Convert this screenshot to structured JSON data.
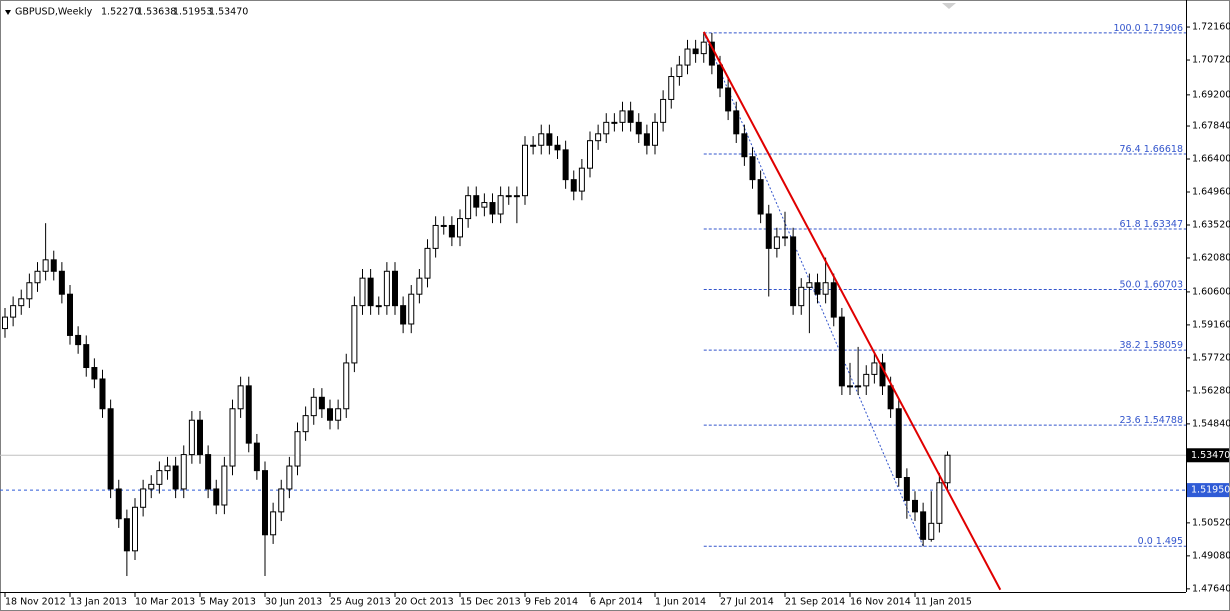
{
  "chart_data": {
    "type": "candlestick",
    "header": {
      "symbol": "GBPUSD,Weekly",
      "ohlc": [
        "1.52270",
        "1.53638",
        "1.51953",
        "1.53470"
      ]
    },
    "categories": [
      "18 Nov 2012",
      null,
      null,
      null,
      null,
      null,
      null,
      null,
      "13 Jan 2013",
      null,
      null,
      null,
      null,
      null,
      null,
      null,
      "10 Mar 2013",
      null,
      null,
      null,
      null,
      null,
      null,
      null,
      "5 May 2013",
      null,
      null,
      null,
      null,
      null,
      null,
      null,
      "30 Jun 2013",
      null,
      null,
      null,
      null,
      null,
      null,
      null,
      "25 Aug 2013",
      null,
      null,
      null,
      null,
      null,
      null,
      null,
      "20 Oct 2013",
      null,
      null,
      null,
      null,
      null,
      null,
      null,
      "15 Dec 2013",
      null,
      null,
      null,
      null,
      null,
      null,
      null,
      "9 Feb 2014",
      null,
      null,
      null,
      null,
      null,
      null,
      null,
      "6 Apr 2014",
      null,
      null,
      null,
      null,
      null,
      null,
      null,
      "1 Jun 2014",
      null,
      null,
      null,
      null,
      null,
      null,
      null,
      "27 Jul 2014",
      null,
      null,
      null,
      null,
      null,
      null,
      null,
      "21 Sep 2014",
      null,
      null,
      null,
      null,
      null,
      null,
      null,
      "16 Nov 2014",
      null,
      null,
      null,
      null,
      null,
      null,
      null,
      "11 Jan 2015",
      null,
      null,
      null,
      null
    ],
    "open": [
      1.59,
      1.595,
      1.6,
      1.603,
      1.61,
      1.615,
      1.62,
      1.615,
      1.605,
      1.587,
      1.583,
      1.573,
      1.568,
      1.555,
      1.52,
      1.507,
      1.493,
      1.512,
      1.52,
      1.522,
      1.528,
      1.53,
      1.52,
      1.535,
      1.55,
      1.535,
      1.52,
      1.513,
      1.53,
      1.555,
      1.565,
      1.54,
      1.528,
      1.5,
      1.51,
      1.52,
      1.53,
      1.545,
      1.552,
      1.56,
      1.555,
      1.55,
      1.555,
      1.575,
      1.6,
      1.612,
      1.6,
      1.6,
      1.615,
      1.6,
      1.592,
      1.605,
      1.612,
      1.625,
      1.635,
      1.635,
      1.63,
      1.638,
      1.648,
      1.643,
      1.645,
      1.64,
      1.648,
      1.648,
      1.648,
      1.67,
      1.67,
      1.675,
      1.67,
      1.668,
      1.655,
      1.65,
      1.66,
      1.672,
      1.675,
      1.68,
      1.68,
      1.685,
      1.68,
      1.675,
      1.67,
      1.68,
      1.69,
      1.7,
      1.705,
      1.712,
      1.71,
      1.715,
      1.705,
      1.695,
      1.685,
      1.675,
      1.665,
      1.655,
      1.64,
      1.625,
      1.63,
      1.63,
      1.6,
      1.608,
      1.61,
      1.605,
      1.61,
      1.595,
      1.565,
      1.565,
      1.565,
      1.57,
      1.575,
      1.565,
      1.555,
      1.525,
      1.515,
      1.51,
      1.498,
      1.505,
      1.5227
    ],
    "high": [
      1.599,
      1.604,
      1.607,
      1.614,
      1.619,
      1.636,
      1.624,
      1.619,
      1.609,
      1.591,
      1.587,
      1.577,
      1.572,
      1.559,
      1.524,
      1.511,
      1.516,
      1.524,
      1.526,
      1.532,
      1.534,
      1.534,
      1.539,
      1.554,
      1.554,
      1.539,
      1.524,
      1.534,
      1.559,
      1.569,
      1.569,
      1.544,
      1.532,
      1.514,
      1.524,
      1.534,
      1.549,
      1.556,
      1.564,
      1.564,
      1.559,
      1.559,
      1.579,
      1.604,
      1.616,
      1.616,
      1.604,
      1.619,
      1.619,
      1.604,
      1.609,
      1.616,
      1.629,
      1.639,
      1.639,
      1.639,
      1.642,
      1.652,
      1.652,
      1.649,
      1.649,
      1.652,
      1.652,
      1.652,
      1.674,
      1.674,
      1.679,
      1.679,
      1.674,
      1.672,
      1.659,
      1.664,
      1.676,
      1.679,
      1.684,
      1.684,
      1.689,
      1.689,
      1.684,
      1.679,
      1.684,
      1.694,
      1.704,
      1.709,
      1.716,
      1.716,
      1.719,
      1.719,
      1.709,
      1.699,
      1.689,
      1.679,
      1.669,
      1.659,
      1.644,
      1.634,
      1.641,
      1.634,
      1.612,
      1.614,
      1.614,
      1.621,
      1.614,
      1.599,
      1.575,
      1.582,
      1.574,
      1.579,
      1.579,
      1.569,
      1.559,
      1.529,
      1.519,
      1.514,
      1.519,
      1.527,
      1.53638
    ],
    "low": [
      1.586,
      1.591,
      1.596,
      1.599,
      1.606,
      1.611,
      1.611,
      1.601,
      1.583,
      1.579,
      1.569,
      1.564,
      1.551,
      1.516,
      1.503,
      1.482,
      1.489,
      1.508,
      1.516,
      1.518,
      1.524,
      1.516,
      1.516,
      1.531,
      1.531,
      1.516,
      1.509,
      1.509,
      1.526,
      1.551,
      1.536,
      1.524,
      1.482,
      1.496,
      1.506,
      1.516,
      1.526,
      1.541,
      1.548,
      1.551,
      1.546,
      1.546,
      1.551,
      1.571,
      1.596,
      1.596,
      1.596,
      1.596,
      1.596,
      1.588,
      1.588,
      1.601,
      1.608,
      1.621,
      1.631,
      1.626,
      1.626,
      1.634,
      1.639,
      1.639,
      1.636,
      1.636,
      1.644,
      1.636,
      1.644,
      1.666,
      1.666,
      1.666,
      1.664,
      1.651,
      1.646,
      1.646,
      1.656,
      1.668,
      1.671,
      1.676,
      1.676,
      1.676,
      1.671,
      1.666,
      1.666,
      1.676,
      1.686,
      1.696,
      1.701,
      1.706,
      1.706,
      1.701,
      1.691,
      1.681,
      1.671,
      1.661,
      1.651,
      1.636,
      1.604,
      1.621,
      1.626,
      1.596,
      1.596,
      1.588,
      1.601,
      1.601,
      1.591,
      1.561,
      1.561,
      1.561,
      1.561,
      1.566,
      1.561,
      1.551,
      1.521,
      1.507,
      1.506,
      1.495,
      1.497,
      1.501,
      1.51953
    ],
    "close": [
      1.595,
      1.6,
      1.603,
      1.61,
      1.615,
      1.62,
      1.615,
      1.605,
      1.587,
      1.583,
      1.573,
      1.568,
      1.555,
      1.52,
      1.507,
      1.493,
      1.512,
      1.52,
      1.522,
      1.528,
      1.53,
      1.52,
      1.535,
      1.55,
      1.535,
      1.52,
      1.513,
      1.53,
      1.555,
      1.565,
      1.54,
      1.528,
      1.5,
      1.51,
      1.52,
      1.53,
      1.545,
      1.552,
      1.56,
      1.555,
      1.55,
      1.555,
      1.575,
      1.6,
      1.612,
      1.6,
      1.6,
      1.615,
      1.6,
      1.592,
      1.605,
      1.612,
      1.625,
      1.635,
      1.635,
      1.63,
      1.638,
      1.648,
      1.643,
      1.645,
      1.64,
      1.648,
      1.648,
      1.648,
      1.67,
      1.67,
      1.675,
      1.67,
      1.668,
      1.655,
      1.65,
      1.66,
      1.672,
      1.675,
      1.68,
      1.68,
      1.685,
      1.68,
      1.675,
      1.67,
      1.68,
      1.69,
      1.7,
      1.705,
      1.712,
      1.71,
      1.715,
      1.705,
      1.695,
      1.685,
      1.675,
      1.665,
      1.655,
      1.64,
      1.625,
      1.63,
      1.63,
      1.6,
      1.608,
      1.61,
      1.605,
      1.61,
      1.595,
      1.565,
      1.565,
      1.565,
      1.57,
      1.575,
      1.565,
      1.555,
      1.525,
      1.515,
      1.51,
      1.498,
      1.505,
      1.5227,
      1.5347
    ],
    "up_color": "#ffffff",
    "down_color": "#000000",
    "outline_color": "#000000",
    "ylim": [
      1.4759,
      1.7334
    ],
    "yticks": [
      {
        "value": 1.7216,
        "label": "1.72160"
      },
      {
        "value": 1.7072,
        "label": "1.70720"
      },
      {
        "value": 1.692,
        "label": "1.69200"
      },
      {
        "value": 1.6784,
        "label": "1.67840"
      },
      {
        "value": 1.664,
        "label": "1.66400"
      },
      {
        "value": 1.6496,
        "label": "1.64960"
      },
      {
        "value": 1.6352,
        "label": "1.63520"
      },
      {
        "value": 1.6208,
        "label": "1.62080"
      },
      {
        "value": 1.606,
        "label": "1.60600"
      },
      {
        "value": 1.5916,
        "label": "1.59160"
      },
      {
        "value": 1.5772,
        "label": "1.57720"
      },
      {
        "value": 1.5628,
        "label": "1.56280"
      },
      {
        "value": 1.5484,
        "label": "1.54840"
      },
      {
        "value": 1.5052,
        "label": "1.50520"
      },
      {
        "value": 1.4908,
        "label": "1.49080"
      },
      {
        "value": 1.4764,
        "label": "1.47640"
      }
    ],
    "current_price": {
      "value": 1.5347,
      "label": "1.53470",
      "color": "#c0c0c0"
    },
    "level_line": {
      "value": 1.5195,
      "label": "1.51950",
      "color": "#2f5bd6"
    },
    "fib": {
      "from_index": 86,
      "to_index": 113,
      "color": "#3355cc",
      "levels": [
        {
          "ratio": "100.0",
          "price": 1.71906
        },
        {
          "ratio": "76.4",
          "price": 1.66618
        },
        {
          "ratio": "61.8",
          "price": 1.63347
        },
        {
          "ratio": "50.0",
          "price": 1.60703
        },
        {
          "ratio": "38.2",
          "price": 1.58059
        },
        {
          "ratio": "23.6",
          "price": 1.54788
        },
        {
          "ratio": "0.0",
          "price": 1.495
        }
      ]
    },
    "trendline": {
      "color": "#e00000",
      "start": {
        "index": 86,
        "price": 1.7195
      },
      "end": {
        "index": 122.5,
        "price": 1.476
      }
    }
  }
}
